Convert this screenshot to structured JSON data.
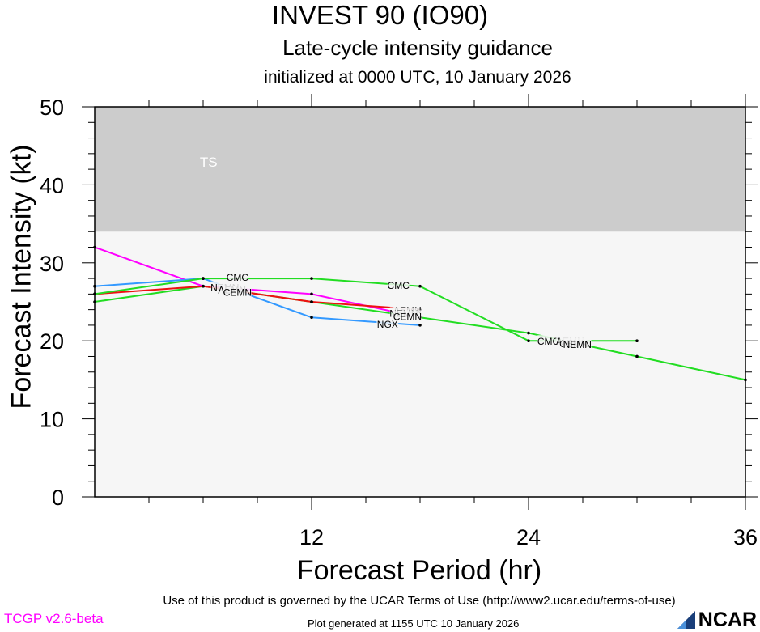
{
  "header": {
    "title": "INVEST 90 (IO90)",
    "subtitle": "Late-cycle intensity guidance",
    "initialized": "initialized at 0000 UTC, 10 January 2026"
  },
  "footer": {
    "terms": "Use of this product is governed by the UCAR Terms of Use (http://www2.ucar.edu/terms-of-use)",
    "version": "TCGP v2.6-beta",
    "generated": "Plot generated at 1155 UTC   10 January 2026",
    "logo": "NCAR"
  },
  "chart_data": {
    "type": "line",
    "xlabel": "Forecast Period (hr)",
    "ylabel": "Forecast Intensity (kt)",
    "xlim": [
      0,
      36
    ],
    "ylim": [
      0,
      50
    ],
    "xticks": [
      12,
      24,
      36
    ],
    "yticks": [
      0,
      10,
      20,
      30,
      40,
      50
    ],
    "bands": [
      {
        "label": "TS",
        "from": 34,
        "to": 50,
        "color": "#cccccc"
      }
    ],
    "background_color": "#f6f6f6",
    "series": [
      {
        "name": "CMC",
        "color": "#22dd22",
        "x": [
          0,
          6,
          12,
          18,
          24,
          30
        ],
        "y": [
          26,
          28,
          28,
          27,
          20,
          20
        ]
      },
      {
        "name": "NGX",
        "color": "#3399ff",
        "x": [
          0,
          6,
          12,
          18
        ],
        "y": [
          27,
          28,
          23,
          22
        ]
      },
      {
        "name": "AEMN",
        "color": "#ee1111",
        "x": [
          0,
          6,
          12,
          18
        ],
        "y": [
          26,
          27,
          25,
          24
        ]
      },
      {
        "name": "NEMN",
        "color": "#ff00ff",
        "x": [
          0,
          6,
          12,
          18
        ],
        "y": [
          32,
          27,
          26,
          23
        ]
      },
      {
        "name": "CEMN",
        "color": "#22dd22",
        "x": [
          0,
          6,
          12,
          18,
          24,
          30,
          36
        ],
        "y": [
          25,
          27,
          25,
          23,
          21,
          18,
          15
        ]
      }
    ],
    "labels": [
      {
        "text": "CMC",
        "x": 7.9,
        "y": 28.2
      },
      {
        "text": "CMC",
        "x": 16.8,
        "y": 27.2
      },
      {
        "text": "CMC",
        "x": 25.1,
        "y": 20.0
      },
      {
        "text": "NGX",
        "x": 16.2,
        "y": 22.2
      },
      {
        "text": "NEMN",
        "x": 7.2,
        "y": 26.9
      },
      {
        "text": "AEMN",
        "x": 7.6,
        "y": 26.6
      },
      {
        "text": "CEMN",
        "x": 7.9,
        "y": 26.3
      },
      {
        "text": "AEMN",
        "x": 17.3,
        "y": 24.0
      },
      {
        "text": "NEMN",
        "x": 17.1,
        "y": 23.6
      },
      {
        "text": "CEMN",
        "x": 17.3,
        "y": 23.2
      },
      {
        "text": "AEMN",
        "x": 26.3,
        "y": 20.0
      },
      {
        "text": "CEMN",
        "x": 26.5,
        "y": 19.7
      },
      {
        "text": "NEMN",
        "x": 26.7,
        "y": 19.6
      }
    ]
  }
}
